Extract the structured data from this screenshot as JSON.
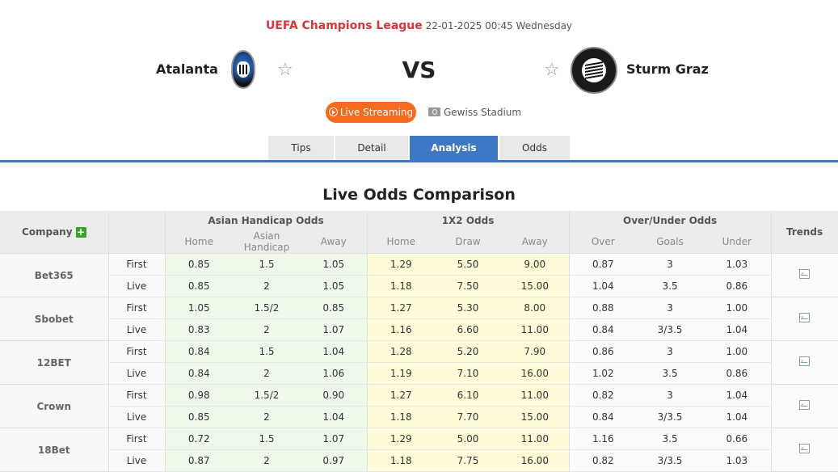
{
  "match": {
    "league": "UEFA Champions League",
    "datetime": "22-01-2025 00:45 Wednesday",
    "home_team": "Atalanta",
    "away_team": "Sturm Graz",
    "vs": "VS",
    "live_streaming_label": "Live Streaming",
    "stadium": "Gewiss Stadium"
  },
  "colors": {
    "league": "#d8343c",
    "live_button": "#f56a1e",
    "active_tab": "#3d78c4",
    "plus": "#3aa22c"
  },
  "tabs": [
    {
      "label": "Tips"
    },
    {
      "label": "Detail"
    },
    {
      "label": "Analysis",
      "active": true
    },
    {
      "label": "Odds"
    }
  ],
  "section_title": "Live Odds Comparison",
  "table": {
    "headers": {
      "company": "Company",
      "asian_handicap": "Asian Handicap Odds",
      "x12": "1X2 Odds",
      "over_under": "Over/Under Odds",
      "trends": "Trends",
      "ah_sub": [
        "Home",
        "Asian Handicap",
        "Away"
      ],
      "x12_sub": [
        "Home",
        "Draw",
        "Away"
      ],
      "ou_sub": [
        "Over",
        "Goals",
        "Under"
      ]
    },
    "companies": [
      {
        "name": "Bet365",
        "rows": [
          {
            "kind": "First",
            "ah": [
              "0.85",
              "1.5",
              "1.05"
            ],
            "x12": [
              "1.29",
              "5.50",
              "9.00"
            ],
            "ou": [
              "0.87",
              "3",
              "1.03"
            ]
          },
          {
            "kind": "Live",
            "ah": [
              "0.85",
              "2",
              "1.05"
            ],
            "x12": [
              "1.18",
              "7.50",
              "15.00"
            ],
            "ou": [
              "1.04",
              "3.5",
              "0.86"
            ]
          }
        ]
      },
      {
        "name": "Sbobet",
        "rows": [
          {
            "kind": "First",
            "ah": [
              "1.05",
              "1.5/2",
              "0.85"
            ],
            "x12": [
              "1.27",
              "5.30",
              "8.00"
            ],
            "ou": [
              "0.88",
              "3",
              "1.00"
            ]
          },
          {
            "kind": "Live",
            "ah": [
              "0.83",
              "2",
              "1.07"
            ],
            "x12": [
              "1.16",
              "6.60",
              "11.00"
            ],
            "ou": [
              "0.84",
              "3/3.5",
              "1.04"
            ]
          }
        ]
      },
      {
        "name": "12BET",
        "rows": [
          {
            "kind": "First",
            "ah": [
              "0.84",
              "1.5",
              "1.04"
            ],
            "x12": [
              "1.28",
              "5.20",
              "7.90"
            ],
            "ou": [
              "0.86",
              "3",
              "1.00"
            ]
          },
          {
            "kind": "Live",
            "ah": [
              "0.84",
              "2",
              "1.06"
            ],
            "x12": [
              "1.19",
              "7.10",
              "16.00"
            ],
            "ou": [
              "1.02",
              "3.5",
              "0.86"
            ]
          }
        ]
      },
      {
        "name": "Crown",
        "rows": [
          {
            "kind": "First",
            "ah": [
              "0.98",
              "1.5/2",
              "0.90"
            ],
            "x12": [
              "1.27",
              "6.10",
              "11.00"
            ],
            "ou": [
              "0.82",
              "3",
              "1.04"
            ]
          },
          {
            "kind": "Live",
            "ah": [
              "0.85",
              "2",
              "1.04"
            ],
            "x12": [
              "1.18",
              "7.70",
              "15.00"
            ],
            "ou": [
              "0.84",
              "3/3.5",
              "1.04"
            ]
          }
        ]
      },
      {
        "name": "18Bet",
        "rows": [
          {
            "kind": "First",
            "ah": [
              "0.72",
              "1.5",
              "1.07"
            ],
            "x12": [
              "1.29",
              "5.00",
              "11.00"
            ],
            "ou": [
              "1.16",
              "3.5",
              "0.66"
            ]
          },
          {
            "kind": "Live",
            "ah": [
              "0.87",
              "2",
              "0.97"
            ],
            "x12": [
              "1.18",
              "7.75",
              "16.00"
            ],
            "ou": [
              "0.82",
              "3/3.5",
              "1.03"
            ]
          }
        ]
      }
    ]
  }
}
